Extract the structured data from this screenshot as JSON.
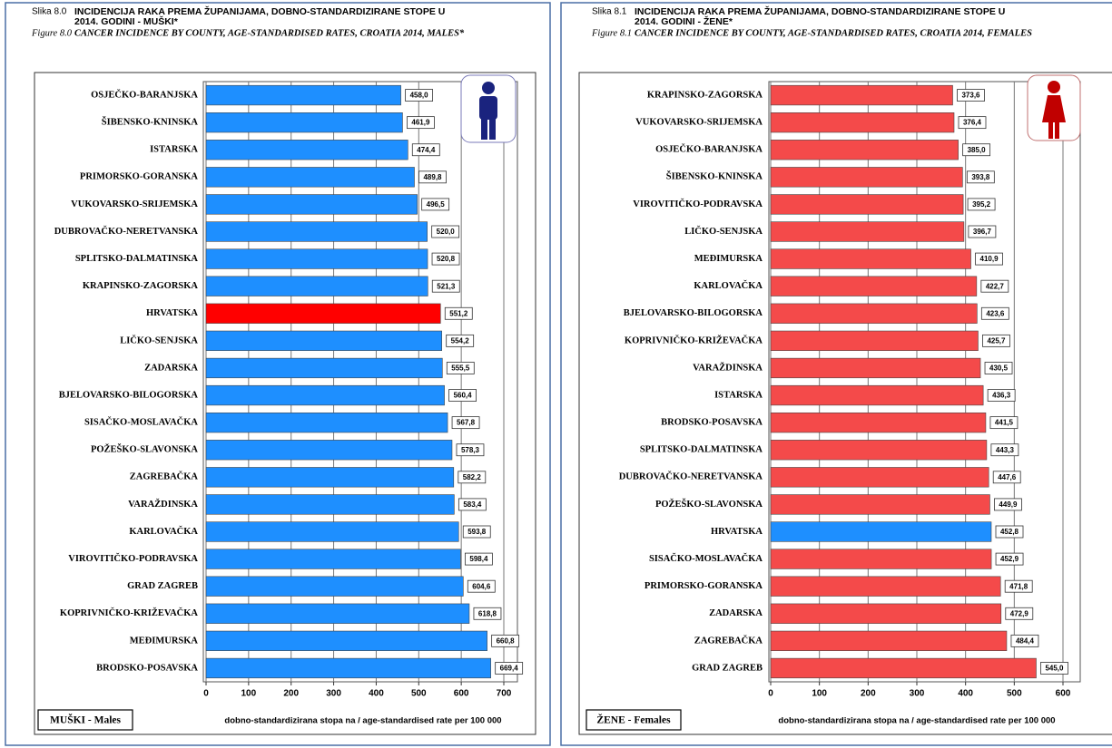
{
  "chart_data": [
    {
      "type": "barh",
      "figure_number": "Slika 8.0",
      "title": [
        "INCIDENCIJA RAKA PREMA ŽUPANIJAMA, DOBNO-STANDARDIZIRANE STOPE U",
        "2014. GODINI - MUŠKI*"
      ],
      "figure_label": "Figure 8.0",
      "subtitle": "CANCER INCIDENCE BY COUNTY, AGE-STANDARDISED RATES, CROATIA 2014, MALES*",
      "box_label": "MUŠKI - Males",
      "x_label": "dobno-standardizirana stopa na / age-standardised rate per 100 000",
      "categories": [
        "OSJEČKO-BARANJSKA",
        "ŠIBENSKO-KNINSKA",
        "ISTARSKA",
        "PRIMORSKO-GORANSKA",
        "VUKOVARSKO-SRIJEMSKA",
        "DUBROVAČKO-NERETVANSKA",
        "SPLITSKO-DALMATINSKA",
        "KRAPINSKO-ZAGORSKA",
        "HRVATSKA",
        "LIČKO-SENJSKA",
        "ZADARSKA",
        "BJELOVARSKO-BILOGORSKA",
        "SISAČKO-MOSLAVAČKA",
        "POŽEŠKO-SLAVONSKA",
        "ZAGREBAČKA",
        "VARAŽDINSKA",
        "KARLOVAČKA",
        "VIROVITIČKO-PODRAVSKA",
        "GRAD ZAGREB",
        "KOPRIVNIČKO-KRIŽEVAČKA",
        "MEĐIMURSKA",
        "BRODSKO-POSAVSKA"
      ],
      "values": [
        458.0,
        461.9,
        474.4,
        489.8,
        496.5,
        520.0,
        520.8,
        521.3,
        551.2,
        554.2,
        555.5,
        560.4,
        567.8,
        578.3,
        582.2,
        583.4,
        593.8,
        598.4,
        604.6,
        618.8,
        660.8,
        669.4
      ],
      "value_labels": [
        "458,0",
        "461,9",
        "474,4",
        "489,8",
        "496,5",
        "520,0",
        "520,8",
        "521,3",
        "551,2",
        "554,2",
        "555,5",
        "560,4",
        "567,8",
        "578,3",
        "582,2",
        "583,4",
        "593,8",
        "598,4",
        "604,6",
        "618,8",
        "660,8",
        "669,4"
      ],
      "colors": [
        "#1e8fff",
        "#1e8fff",
        "#1e8fff",
        "#1e8fff",
        "#1e8fff",
        "#1e8fff",
        "#1e8fff",
        "#1e8fff",
        "#ff0000",
        "#1e8fff",
        "#1e8fff",
        "#1e8fff",
        "#1e8fff",
        "#1e8fff",
        "#1e8fff",
        "#1e8fff",
        "#1e8fff",
        "#1e8fff",
        "#1e8fff",
        "#1e8fff",
        "#1e8fff",
        "#1e8fff"
      ],
      "xlim": [
        0,
        700
      ],
      "xticks": [
        0,
        100,
        200,
        300,
        400,
        500,
        600,
        700
      ],
      "grid": true
    },
    {
      "type": "barh",
      "figure_number": "Slika 8.1",
      "title": [
        "INCIDENCIJA RAKA PREMA ŽUPANIJAMA, DOBNO-STANDARDIZIRANE STOPE U",
        "2014. GODINI - ŽENE*"
      ],
      "figure_label": "Figure 8.1",
      "subtitle": "CANCER INCIDENCE BY COUNTY, AGE-STANDARDISED RATES, CROATIA 2014, FEMALES",
      "box_label": "ŽENE - Females",
      "x_label": "dobno-standardizirana stopa na / age-standardised rate per 100 000",
      "categories": [
        "KRAPINSKO-ZAGORSKA",
        "VUKOVARSKO-SRIJEMSKA",
        "OSJEČKO-BARANJSKA",
        "ŠIBENSKO-KNINSKA",
        "VIROVITIČKO-PODRAVSKA",
        "LIČKO-SENJSKA",
        "MEĐIMURSKA",
        "KARLOVAČKA",
        "BJELOVARSKO-BILOGORSKA",
        "KOPRIVNIČKO-KRIŽEVAČKA",
        "VARAŽDINSKA",
        "ISTARSKA",
        "BRODSKO-POSAVSKA",
        "SPLITSKO-DALMATINSKA",
        "DUBROVAČKO-NERETVANSKA",
        "POŽEŠKO-SLAVONSKA",
        "HRVATSKA",
        "SISAČKO-MOSLAVAČKA",
        "PRIMORSKO-GORANSKA",
        "ZADARSKA",
        "ZAGREBAČKA",
        "GRAD ZAGREB"
      ],
      "values": [
        373.6,
        376.4,
        385.0,
        393.8,
        395.2,
        396.7,
        410.9,
        422.7,
        423.6,
        425.7,
        430.5,
        436.3,
        441.5,
        443.3,
        447.6,
        449.9,
        452.8,
        452.9,
        471.8,
        472.9,
        484.4,
        545.0
      ],
      "value_labels": [
        "373,6",
        "376,4",
        "385,0",
        "393,8",
        "395,2",
        "396,7",
        "410,9",
        "422,7",
        "423,6",
        "425,7",
        "430,5",
        "436,3",
        "441,5",
        "443,3",
        "447,6",
        "449,9",
        "452,8",
        "452,9",
        "471,8",
        "472,9",
        "484,4",
        "545,0"
      ],
      "colors": [
        "#f44a4a",
        "#f44a4a",
        "#f44a4a",
        "#f44a4a",
        "#f44a4a",
        "#f44a4a",
        "#f44a4a",
        "#f44a4a",
        "#f44a4a",
        "#f44a4a",
        "#f44a4a",
        "#f44a4a",
        "#f44a4a",
        "#f44a4a",
        "#f44a4a",
        "#f44a4a",
        "#1e8fff",
        "#f44a4a",
        "#f44a4a",
        "#f44a4a",
        "#f44a4a",
        "#f44a4a"
      ],
      "xlim": [
        0,
        600
      ],
      "xticks": [
        0,
        100,
        200,
        300,
        400,
        500,
        600
      ],
      "grid": true
    }
  ]
}
